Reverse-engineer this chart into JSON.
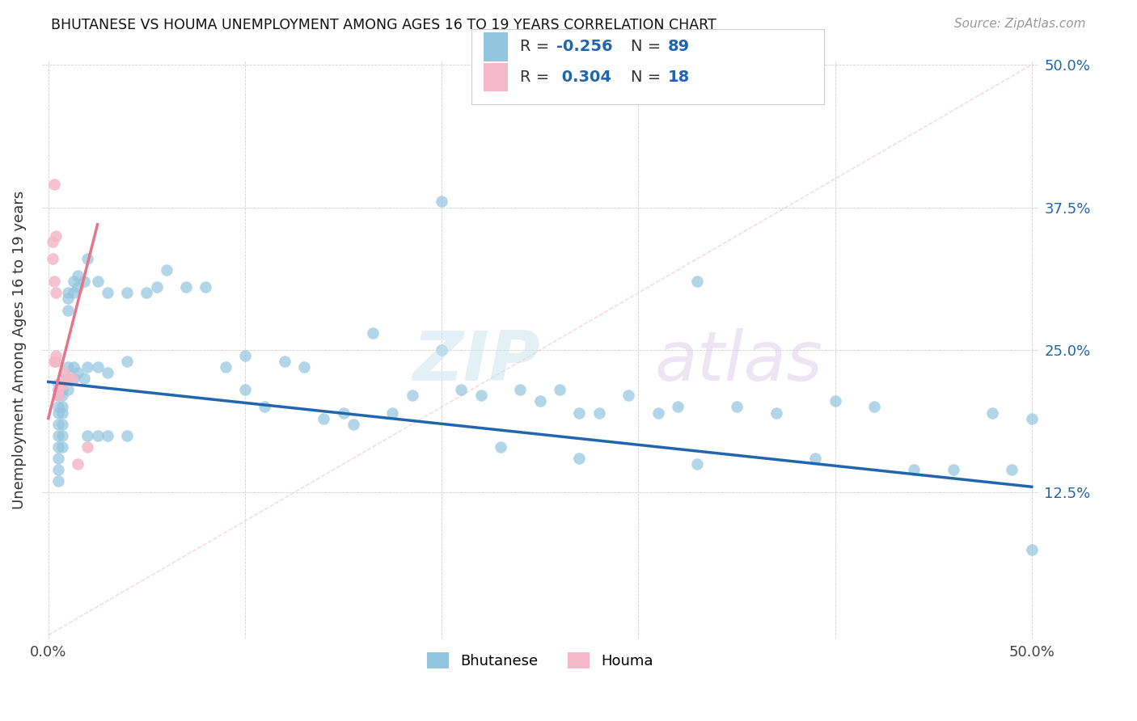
{
  "title": "BHUTANESE VS HOUMA UNEMPLOYMENT AMONG AGES 16 TO 19 YEARS CORRELATION CHART",
  "source": "Source: ZipAtlas.com",
  "ylabel": "Unemployment Among Ages 16 to 19 years",
  "xlim": [
    0.0,
    0.5
  ],
  "ylim": [
    0.0,
    0.5
  ],
  "xtick_positions": [
    0.0,
    0.1,
    0.2,
    0.3,
    0.4,
    0.5
  ],
  "xticklabels": [
    "0.0%",
    "",
    "",
    "",
    "",
    "50.0%"
  ],
  "ytick_positions": [
    0.125,
    0.25,
    0.375,
    0.5
  ],
  "yticklabels": [
    "12.5%",
    "25.0%",
    "37.5%",
    "50.0%"
  ],
  "bhutanese_R": "-0.256",
  "bhutanese_N": "89",
  "houma_R": "0.304",
  "houma_N": "18",
  "blue_color": "#92c5de",
  "pink_color": "#f4b8c8",
  "trend_blue_color": "#2166ac",
  "trend_pink_color": "#e8748a",
  "ref_line_color": "#f4b8c8",
  "watermark_zip_color": "#d0e8f5",
  "watermark_atlas_color": "#ddd4ec",
  "bhutanese_x": [
    0.005,
    0.005,
    0.005,
    0.005,
    0.005,
    0.005,
    0.005,
    0.005,
    0.005,
    0.005,
    0.007,
    0.007,
    0.007,
    0.007,
    0.007,
    0.007,
    0.007,
    0.007,
    0.01,
    0.01,
    0.01,
    0.01,
    0.01,
    0.01,
    0.013,
    0.013,
    0.013,
    0.013,
    0.015,
    0.015,
    0.015,
    0.018,
    0.018,
    0.02,
    0.02,
    0.02,
    0.025,
    0.025,
    0.025,
    0.03,
    0.03,
    0.03,
    0.04,
    0.04,
    0.04,
    0.05,
    0.055,
    0.06,
    0.07,
    0.08,
    0.09,
    0.1,
    0.1,
    0.11,
    0.12,
    0.13,
    0.14,
    0.15,
    0.155,
    0.165,
    0.175,
    0.185,
    0.2,
    0.21,
    0.22,
    0.23,
    0.24,
    0.25,
    0.26,
    0.27,
    0.28,
    0.295,
    0.31,
    0.32,
    0.33,
    0.35,
    0.37,
    0.39,
    0.4,
    0.42,
    0.44,
    0.46,
    0.48,
    0.49,
    0.5,
    0.5,
    0.33,
    0.27,
    0.2
  ],
  "bhutanese_y": [
    0.215,
    0.21,
    0.2,
    0.195,
    0.185,
    0.175,
    0.165,
    0.155,
    0.145,
    0.135,
    0.22,
    0.215,
    0.21,
    0.2,
    0.195,
    0.185,
    0.175,
    0.165,
    0.3,
    0.295,
    0.285,
    0.235,
    0.225,
    0.215,
    0.31,
    0.3,
    0.235,
    0.225,
    0.315,
    0.305,
    0.23,
    0.31,
    0.225,
    0.33,
    0.235,
    0.175,
    0.31,
    0.235,
    0.175,
    0.3,
    0.23,
    0.175,
    0.3,
    0.24,
    0.175,
    0.3,
    0.305,
    0.32,
    0.305,
    0.305,
    0.235,
    0.245,
    0.215,
    0.2,
    0.24,
    0.235,
    0.19,
    0.195,
    0.185,
    0.265,
    0.195,
    0.21,
    0.38,
    0.215,
    0.21,
    0.165,
    0.215,
    0.205,
    0.215,
    0.155,
    0.195,
    0.21,
    0.195,
    0.2,
    0.15,
    0.2,
    0.195,
    0.155,
    0.205,
    0.2,
    0.145,
    0.145,
    0.195,
    0.145,
    0.19,
    0.075,
    0.31,
    0.195,
    0.25
  ],
  "houma_x": [
    0.002,
    0.002,
    0.003,
    0.003,
    0.003,
    0.004,
    0.004,
    0.004,
    0.004,
    0.005,
    0.005,
    0.005,
    0.008,
    0.008,
    0.01,
    0.012,
    0.015,
    0.02
  ],
  "houma_y": [
    0.345,
    0.33,
    0.395,
    0.31,
    0.24,
    0.35,
    0.3,
    0.245,
    0.24,
    0.22,
    0.215,
    0.21,
    0.23,
    0.22,
    0.225,
    0.225,
    0.15,
    0.165
  ],
  "blue_trend_x": [
    0.0,
    0.5
  ],
  "blue_trend_y": [
    0.222,
    0.13
  ],
  "pink_trend_x": [
    0.0,
    0.025
  ],
  "pink_trend_y": [
    0.19,
    0.36
  ]
}
